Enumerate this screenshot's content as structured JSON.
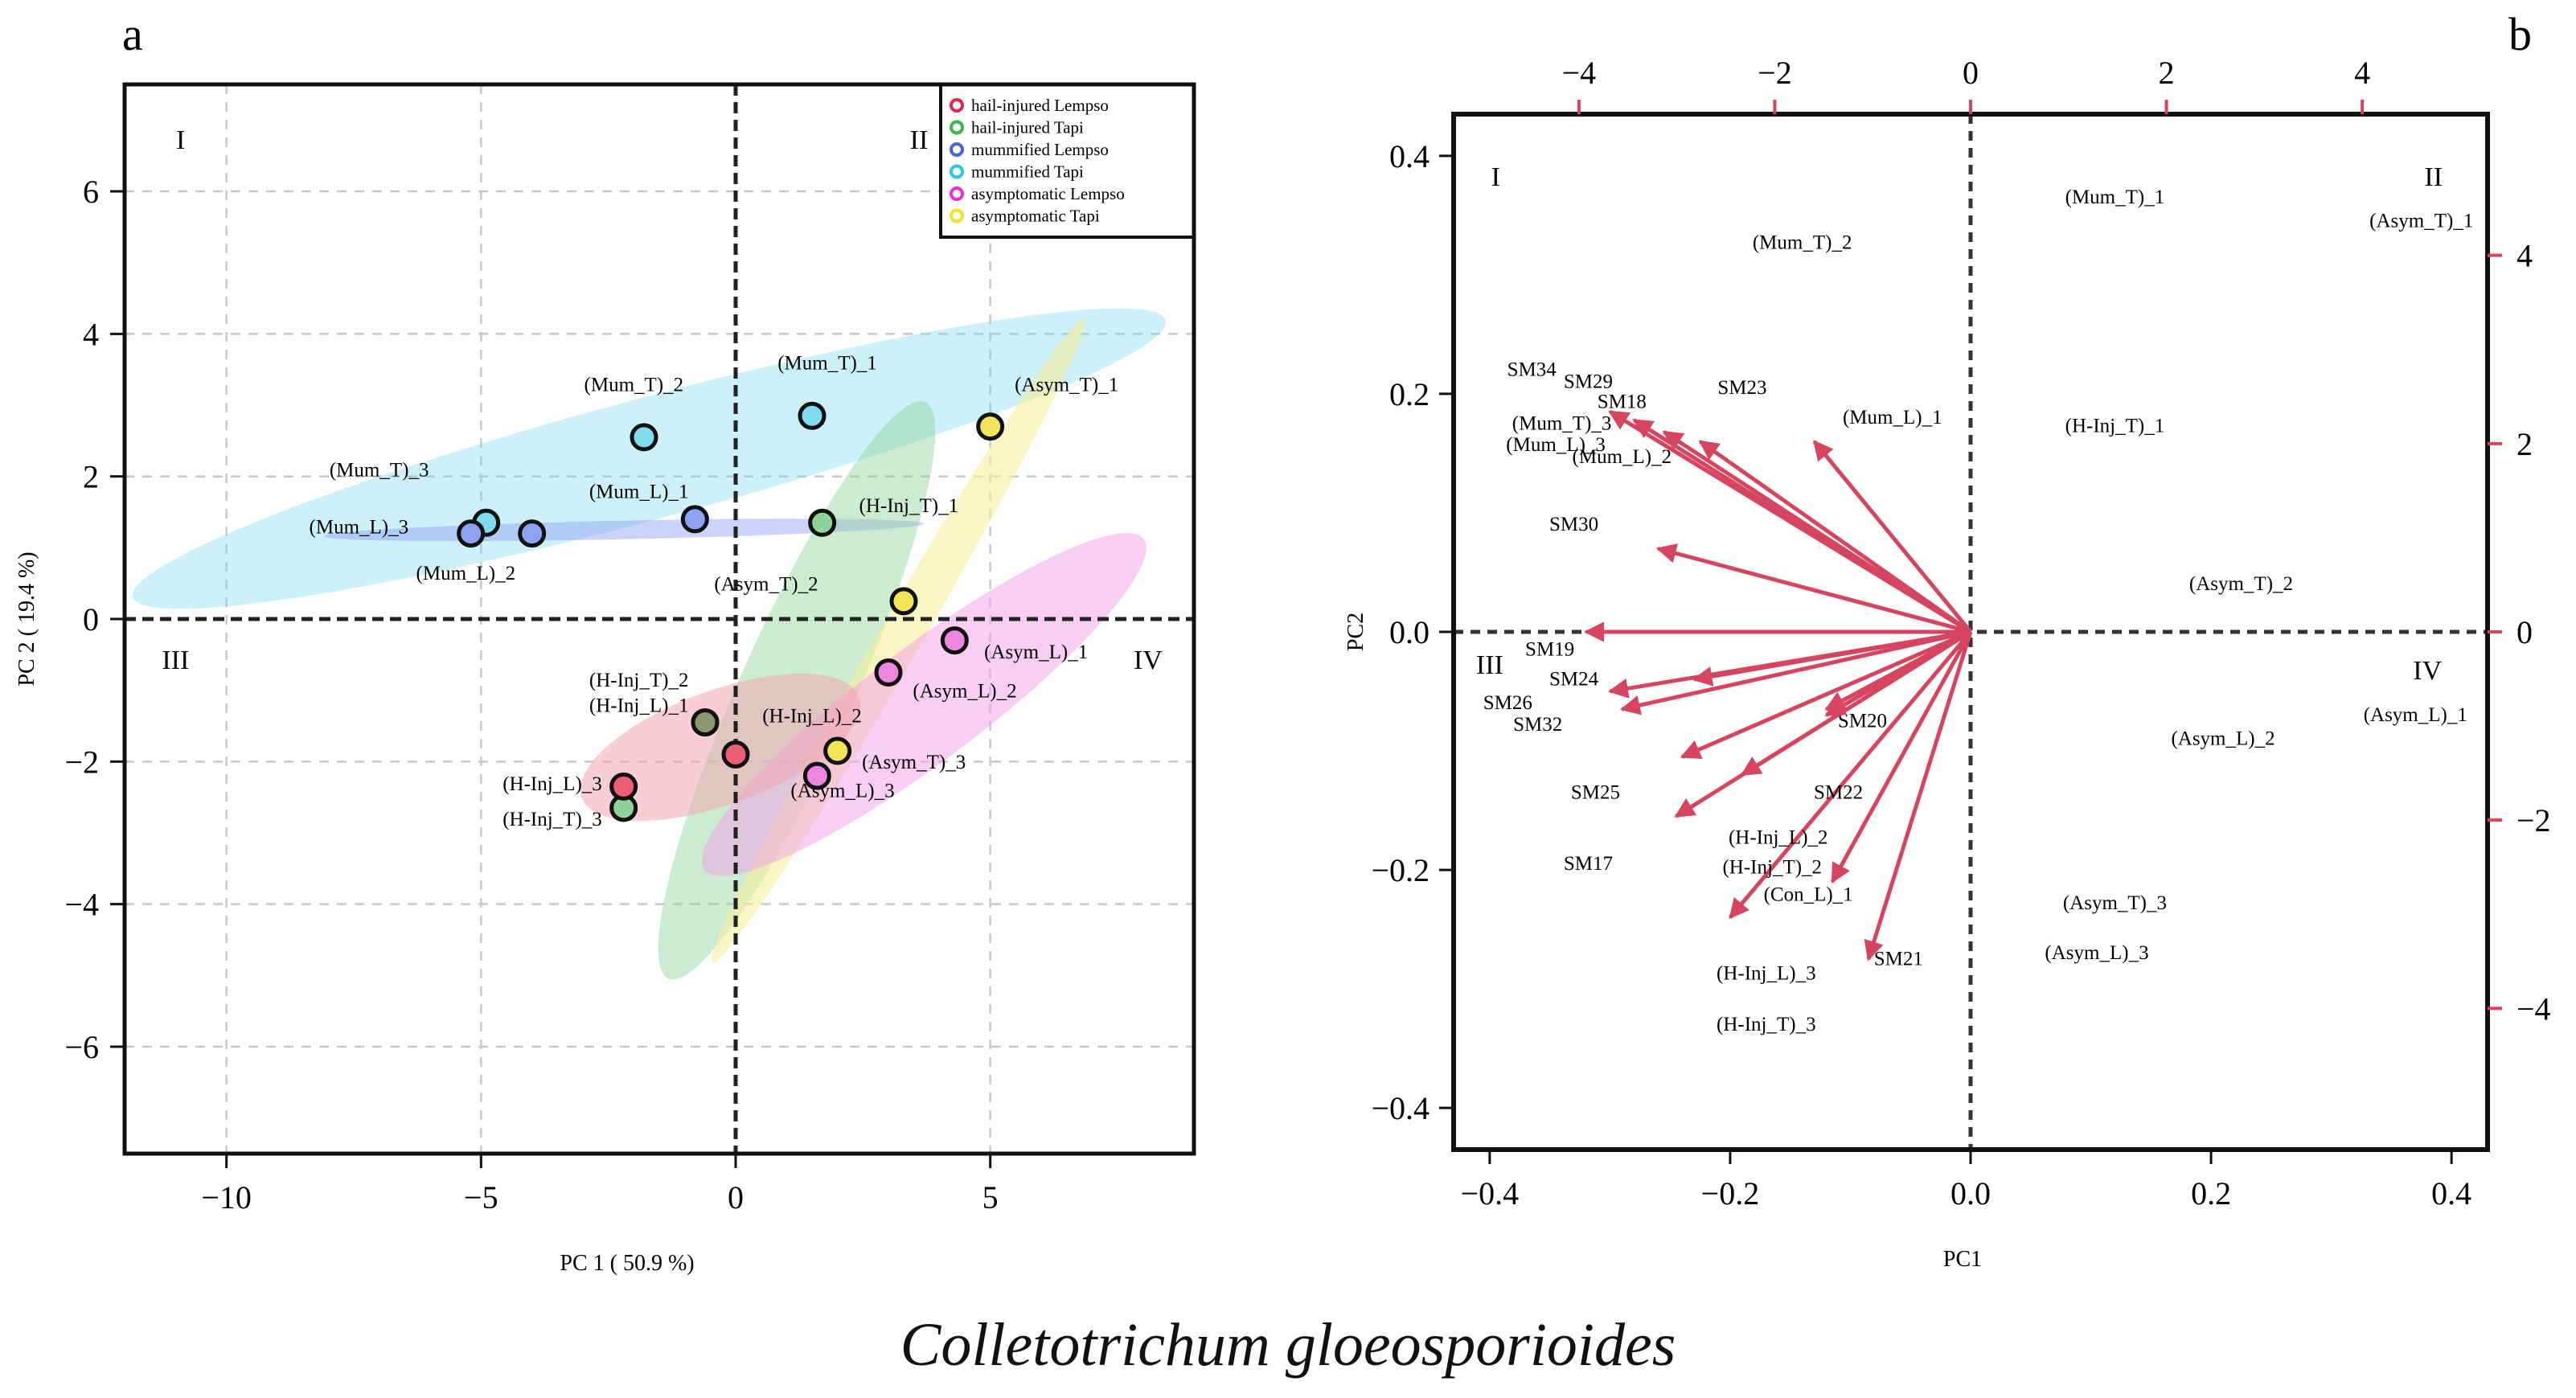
{
  "figure": {
    "caption": "Colletotrichum gloeosporioides"
  },
  "chart_data": [
    {
      "panel": "a",
      "type": "scatter",
      "xlabel": "PC 1 ( 50.9 %)",
      "ylabel": "PC 2 ( 19.4 %)",
      "xlim": [
        -12,
        9
      ],
      "ylim": [
        -7.5,
        7.5
      ],
      "xticks": [
        -10,
        -5,
        0,
        5
      ],
      "xtick_labels": [
        "−10",
        "−5",
        "0",
        "5"
      ],
      "yticks": [
        -6,
        -4,
        -2,
        0,
        2,
        4,
        6
      ],
      "ytick_labels": [
        "−6",
        "−4",
        "−2",
        "0",
        "2",
        "4",
        "6"
      ],
      "grid": true,
      "quadrants": [
        {
          "label": "I",
          "x": -10.9,
          "y": 6.6
        },
        {
          "label": "II",
          "x": 3.6,
          "y": 6.6
        },
        {
          "label": "III",
          "x": -11.0,
          "y": -0.7
        },
        {
          "label": "IV",
          "x": 8.1,
          "y": -0.7
        }
      ],
      "legend": {
        "position": "top-right",
        "entries": [
          {
            "label": "hail-injured Lempso",
            "color": "#e0284c"
          },
          {
            "label": "hail-injured  Tapi",
            "color": "#3db54a"
          },
          {
            "label": "mummified Lempso",
            "color": "#4a64d8"
          },
          {
            "label": "mummified Tapi",
            "color": "#2bc8e0"
          },
          {
            "label": "asymptomatic Lempso",
            "color": "#e830d8"
          },
          {
            "label": "asymptomatic Tapi",
            "color": "#f2e02a"
          }
        ]
      },
      "ellipses": [
        {
          "group": "mummified Tapi",
          "color": "#6fd6ee",
          "opacity": 0.35,
          "cx": -1.7,
          "cy": 2.25,
          "rx": 10.5,
          "ry": 0.85,
          "angle": 15
        },
        {
          "group": "mummified Lempso",
          "color": "#8e9ef0",
          "opacity": 0.45,
          "cx": -2.2,
          "cy": 1.25,
          "rx": 5.9,
          "ry": 0.13,
          "angle": 1.2
        },
        {
          "group": "hail-injured  Tapi",
          "color": "#8ed49a",
          "opacity": 0.45,
          "cx": 1.2,
          "cy": -1.0,
          "rx": 6.2,
          "ry": 0.8,
          "angle": 66
        },
        {
          "group": "asymptomatic Tapi",
          "color": "#f7ee9e",
          "opacity": 0.6,
          "cx": 3.2,
          "cy": -0.3,
          "rx": 7.3,
          "ry": 0.3,
          "angle": 60
        },
        {
          "group": "asymptomatic Lempso",
          "color": "#f29ee8",
          "opacity": 0.5,
          "cx": 3.7,
          "cy": -1.2,
          "rx": 5.4,
          "ry": 0.8,
          "angle": 37
        },
        {
          "group": "hail-injured Lempso",
          "color": "#f2a6b2",
          "opacity": 0.55,
          "cx": -0.3,
          "cy": -1.8,
          "rx": 2.9,
          "ry": 0.8,
          "angle": 20
        }
      ],
      "points": [
        {
          "label": "(Mum_T)_1",
          "x": 1.5,
          "y": 2.85,
          "color": "#7fdcee",
          "lx": 1.8,
          "ly": 3.5
        },
        {
          "label": "(Mum_T)_2",
          "x": -1.8,
          "y": 2.55,
          "color": "#7fdcee",
          "lx": -2.0,
          "ly": 3.2
        },
        {
          "label": "(Mum_T)_3",
          "x": -4.9,
          "y": 1.35,
          "color": "#7fdcee",
          "lx": -7.0,
          "ly": 2.0
        },
        {
          "label": "(Mum_L)_1",
          "x": -0.8,
          "y": 1.4,
          "color": "#8ea2f2",
          "lx": -1.9,
          "ly": 1.7
        },
        {
          "label": "(Mum_L)_2",
          "x": -4.0,
          "y": 1.2,
          "color": "#8ea2f2",
          "lx": -5.3,
          "ly": 0.55
        },
        {
          "label": "(Mum_L)_3",
          "x": -5.2,
          "y": 1.2,
          "color": "#8ea2f2",
          "lx": -7.4,
          "ly": 1.2
        },
        {
          "label": "(Asym_T)_1",
          "x": 5.0,
          "y": 2.7,
          "color": "#f4e45a",
          "lx": 6.5,
          "ly": 3.2
        },
        {
          "label": "(Asym_T)_2",
          "x": 3.3,
          "y": 0.25,
          "color": "#f4e45a",
          "lx": 0.6,
          "ly": 0.4
        },
        {
          "label": "(Asym_T)_3",
          "x": 2.0,
          "y": -1.85,
          "color": "#f4e45a",
          "lx": 3.5,
          "ly": -2.1
        },
        {
          "label": "(Asym_L)_1",
          "x": 4.3,
          "y": -0.3,
          "color": "#ec86e0",
          "lx": 5.9,
          "ly": -0.55
        },
        {
          "label": "(Asym_L)_2",
          "x": 3.0,
          "y": -0.75,
          "color": "#ec86e0",
          "lx": 4.5,
          "ly": -1.1
        },
        {
          "label": "(Asym_L)_3",
          "x": 1.6,
          "y": -2.2,
          "color": "#ec86e0",
          "lx": 2.1,
          "ly": -2.5
        },
        {
          "label": "(H-Inj_T)_1",
          "x": 1.7,
          "y": 1.35,
          "color": "#8ed49a",
          "lx": 3.4,
          "ly": 1.5
        },
        {
          "label": "(H-Inj_T)_2",
          "x": -0.6,
          "y": -1.45,
          "color": "#8a9a6e",
          "lx": -1.9,
          "ly": -0.95
        },
        {
          "label": "(H-Inj_T)_3",
          "x": -2.2,
          "y": -2.65,
          "color": "#8ed49a",
          "lx": -3.6,
          "ly": -2.9
        },
        {
          "label": "(H-Inj_L)_1",
          "x": -0.6,
          "y": -1.45,
          "color": "#8a9a6e",
          "lx": -1.9,
          "ly": -1.3
        },
        {
          "label": "(H-Inj_L)_2",
          "x": 0.0,
          "y": -1.9,
          "color": "#ee5e72",
          "lx": 1.5,
          "ly": -1.45
        },
        {
          "label": "(H-Inj_L)_3",
          "x": -2.2,
          "y": -2.35,
          "color": "#ee5e72",
          "lx": -3.6,
          "ly": -2.4
        }
      ]
    },
    {
      "panel": "b",
      "type": "scatter",
      "subtype": "biplot",
      "xlabel": "PC1",
      "ylabel": "PC2",
      "xlim": [
        -0.43,
        0.43
      ],
      "ylim": [
        -0.435,
        0.435
      ],
      "xticks": [
        -0.4,
        -0.2,
        0.0,
        0.2,
        0.4
      ],
      "xtick_labels": [
        "−0.4",
        "−0.2",
        "0.0",
        "0.2",
        "0.4"
      ],
      "yticks": [
        -0.4,
        -0.2,
        0.0,
        0.2,
        0.4
      ],
      "ytick_labels": [
        "−0.4",
        "−0.2",
        "0.0",
        "0.2",
        "0.4"
      ],
      "top_axis": {
        "lim": [
          -5.28,
          5.28
        ],
        "ticks": [
          -4,
          -2,
          0,
          2,
          4
        ],
        "labels": [
          "−4",
          "−2",
          "0",
          "2",
          "4"
        ]
      },
      "right_axis": {
        "lim": [
          -5.5,
          5.5
        ],
        "ticks": [
          -4,
          -2,
          0,
          2,
          4
        ],
        "labels": [
          "−4",
          "−2",
          "0",
          "2",
          "4"
        ]
      },
      "arrow_color": "#d6455f",
      "quadrants": [
        {
          "label": "I",
          "x": -0.395,
          "y": 0.375
        },
        {
          "label": "II",
          "x": 0.385,
          "y": 0.375
        },
        {
          "label": "III",
          "x": -0.4,
          "y": -0.035
        },
        {
          "label": "IV",
          "x": 0.38,
          "y": -0.04
        }
      ],
      "loadings": [
        {
          "label": "SM34",
          "x": -0.3,
          "y": 0.185,
          "lx": -0.365,
          "ly": 0.215
        },
        {
          "label": "SM29",
          "x": -0.28,
          "y": 0.178,
          "lx": -0.318,
          "ly": 0.205
        },
        {
          "label": "SM18",
          "x": -0.255,
          "y": 0.168,
          "lx": -0.29,
          "ly": 0.188
        },
        {
          "label": "SM23",
          "x": -0.225,
          "y": 0.16,
          "lx": -0.19,
          "ly": 0.2
        },
        {
          "label": "SM30",
          "x": -0.26,
          "y": 0.07,
          "lx": -0.33,
          "ly": 0.085
        },
        {
          "label": "SM19",
          "x": -0.32,
          "y": 0.0,
          "lx": -0.35,
          "ly": -0.02
        },
        {
          "label": "SM24",
          "x": -0.3,
          "y": -0.05,
          "lx": -0.33,
          "ly": -0.045
        },
        {
          "label": "SM26",
          "x": -0.29,
          "y": -0.065,
          "lx": -0.385,
          "ly": -0.065
        },
        {
          "label": "SM32",
          "x": -0.24,
          "y": -0.105,
          "lx": -0.36,
          "ly": -0.083
        },
        {
          "label": "SM25",
          "x": -0.245,
          "y": -0.155,
          "lx": -0.312,
          "ly": -0.14
        },
        {
          "label": "SM17",
          "x": -0.2,
          "y": -0.24,
          "lx": -0.318,
          "ly": -0.2
        },
        {
          "label": "SM20",
          "x": -0.12,
          "y": -0.065,
          "lx": -0.09,
          "ly": -0.08
        },
        {
          "label": "SM22",
          "x": -0.115,
          "y": -0.21,
          "lx": -0.11,
          "ly": -0.14
        },
        {
          "label": "SM21",
          "x": -0.085,
          "y": -0.275,
          "lx": -0.06,
          "ly": -0.28
        },
        {
          "label": "",
          "x": -0.13,
          "y": 0.16
        },
        {
          "label": "",
          "x": -0.23,
          "y": -0.04
        },
        {
          "label": "",
          "x": -0.19,
          "y": -0.12
        },
        {
          "label": "",
          "x": -0.12,
          "y": -0.07
        }
      ],
      "sample_labels": [
        {
          "label": "(Mum_T)_1",
          "x": 0.12,
          "y": 0.36
        },
        {
          "label": "(Mum_T)_2",
          "x": -0.14,
          "y": 0.322
        },
        {
          "label": "(Mum_T)_3",
          "x": -0.34,
          "y": 0.17
        },
        {
          "label": "(Mum_L)_1",
          "x": -0.065,
          "y": 0.175
        },
        {
          "label": "(Mum_L)_2",
          "x": -0.29,
          "y": 0.142
        },
        {
          "label": "(Mum_L)_3",
          "x": -0.345,
          "y": 0.152
        },
        {
          "label": "(Asym_T)_1",
          "x": 0.375,
          "y": 0.34
        },
        {
          "label": "(Asym_T)_2",
          "x": 0.225,
          "y": 0.035
        },
        {
          "label": "(Asym_T)_3",
          "x": 0.12,
          "y": -0.233
        },
        {
          "label": "(Asym_L)_1",
          "x": 0.37,
          "y": -0.075
        },
        {
          "label": "(Asym_L)_2",
          "x": 0.21,
          "y": -0.095
        },
        {
          "label": "(Asym_L)_3",
          "x": 0.105,
          "y": -0.275
        },
        {
          "label": "(H-Inj_T)_1",
          "x": 0.12,
          "y": 0.168
        },
        {
          "label": "(H-Inj_L)_2",
          "x": -0.16,
          "y": -0.178
        },
        {
          "label": "(H-Inj_T)_2",
          "x": -0.165,
          "y": -0.203
        },
        {
          "label": "(Con_L)_1",
          "x": -0.135,
          "y": -0.226
        },
        {
          "label": "(H-Inj_L)_3",
          "x": -0.17,
          "y": -0.292
        },
        {
          "label": "(H-Inj_T)_3",
          "x": -0.17,
          "y": -0.335
        }
      ]
    }
  ]
}
